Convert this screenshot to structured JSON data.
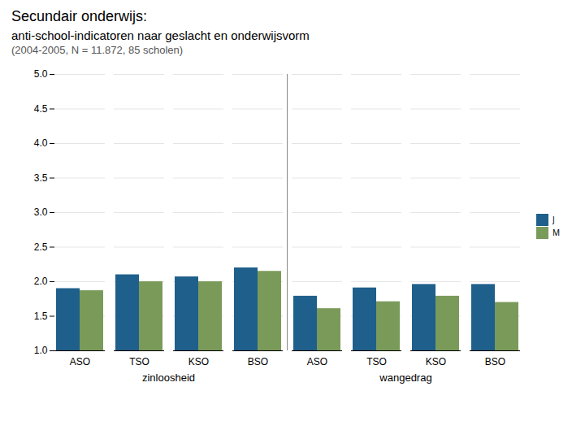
{
  "chart_data": {
    "type": "bar",
    "title": "Secundair onderwijs:",
    "subtitle": "anti-school-indicatoren naar geslacht en onderwijsvorm\n(2004-2005, N = 11.872, 85 scholen)",
    "groups": [
      "zinloosheid",
      "wangedrag"
    ],
    "categories": [
      "ASO",
      "TSO",
      "KSO",
      "BSO",
      "ASO",
      "TSO",
      "KSO",
      "BSO"
    ],
    "series": [
      {
        "name": "J",
        "color": "#1f5f8b",
        "values": [
          1.9,
          2.1,
          2.07,
          2.2,
          1.79,
          1.91,
          1.96,
          1.96
        ]
      },
      {
        "name": "M",
        "color": "#7a9a5a",
        "values": [
          1.87,
          2.0,
          2.0,
          2.15,
          1.61,
          1.71,
          1.79,
          1.7
        ]
      }
    ],
    "ylim": [
      1.0,
      5.0
    ],
    "yticks": [
      {
        "value": 1.0,
        "label": "1.0"
      },
      {
        "value": 1.5,
        "label": "1.5"
      },
      {
        "value": 2.0,
        "label": "2.0"
      },
      {
        "value": 2.5,
        "label": "2.5"
      },
      {
        "value": 3.0,
        "label": "3.0"
      },
      {
        "value": 3.5,
        "label": "3.5"
      },
      {
        "value": 4.0,
        "label": "4.0"
      },
      {
        "value": 4.5,
        "label": "4.5"
      },
      {
        "value": 5.0,
        "label": "5.0"
      }
    ],
    "grid": true,
    "legend": "right"
  }
}
